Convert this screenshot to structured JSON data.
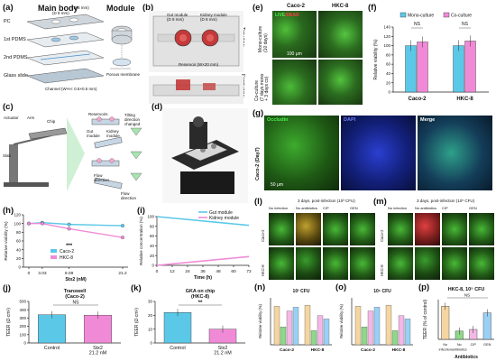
{
  "panel_labels": [
    "(a)",
    "(b)",
    "(c)",
    "(d)",
    "(e)",
    "(f)",
    "(g)",
    "(h)",
    "(i)",
    "(j)",
    "(k)",
    "(l)",
    "(m)",
    "(n)",
    "(o)",
    "(p)"
  ],
  "a": {
    "main_body": "Main body",
    "module": "Module",
    "layers": [
      "PC",
      "1st PDMS",
      "2nd PDMS",
      "Glass slide"
    ],
    "dims": [
      "(D 8 mm)",
      "(D 8 mm)"
    ],
    "channel": "Channel (W×H: 0.5×0.5 mm)",
    "porous": "Porous membrane"
  },
  "b": {
    "top_view": "Top view",
    "front_view": "Front view",
    "gut": "Gut module\n(D 8 mm)",
    "kidney": "Kidney module\n(D 8 mm)",
    "reservoir": "Reservoir (W×20 mm)"
  },
  "c": {
    "labels": [
      "Actuator",
      "Arm",
      "Chip",
      "Slab",
      "Reservoirs",
      "Tilting\ndirection\nchanged",
      "Gut\nmodule",
      "Kidney\nmodule",
      "Flow\ndirection",
      "Flow\ndirection"
    ]
  },
  "e": {
    "live_label": "LIVE",
    "dead_label": "/DEAD",
    "col1": "Caco-2",
    "col2": "HKC-8",
    "row1": "Mono-culture\n(10 days)",
    "row2": "Co-culture\n(7 days mono\n+ 3 days co)",
    "scale": "100 μm"
  },
  "f": {
    "title": "",
    "legend": [
      "Mono-culture",
      "Co-culture"
    ],
    "ylabel": "Relative viability (%)",
    "ns": [
      "NS",
      "NS"
    ],
    "categories": [
      "Caco-2",
      "HKC-8"
    ],
    "yticks": [
      "0",
      "20",
      "40",
      "60",
      "80",
      "100",
      "120",
      "140"
    ]
  },
  "g": {
    "row": "Caco-2 (Day7)",
    "tiles": [
      "Occludin",
      "DAPI",
      "Merge"
    ],
    "scale": "50 μm"
  },
  "h": {
    "ylabel": "Relative viability (%)",
    "xlabel": "Stx2 (nM)",
    "xticks": [
      "0",
      "3.03",
      "9.09",
      "21.2"
    ],
    "yticks": [
      "0",
      "20",
      "40",
      "60",
      "80",
      "100",
      "120"
    ],
    "legend": [
      "Caco-2",
      "HKC-8"
    ],
    "stars": "***"
  },
  "i": {
    "ylabel": "Relative concentration (%)",
    "xlabel": "Time (h)",
    "xticks": [
      "0",
      "12",
      "24",
      "36",
      "48",
      "60",
      "72"
    ],
    "yticks": [
      "0",
      "20",
      "40",
      "60",
      "80",
      "100"
    ],
    "legend": [
      "Gut module",
      "Kidney module"
    ]
  },
  "j": {
    "title": "Transwell\n(Caco-2)",
    "ylabel": "TEER (Ω·cm²)",
    "categories": [
      "Control",
      "Stx2\n21.2 nM"
    ],
    "ns": "NS",
    "yticks": [
      "0",
      "100",
      "200",
      "300",
      "400",
      "500"
    ]
  },
  "k": {
    "title": "GKA on chip\n(HKC-8)",
    "ylabel": "TEER (Ω·cm²)",
    "categories": [
      "Control",
      "Stx2\n21.2 nM"
    ],
    "stars": "**",
    "yticks": [
      "0",
      "10",
      "20",
      "30"
    ]
  },
  "l": {
    "header": "3 days, post-infection (10³ CFU)",
    "cols": [
      "No infection",
      "No antibiotics",
      "CIP",
      "GEN"
    ],
    "rows": [
      "Caco-2",
      "HKC-8"
    ]
  },
  "m": {
    "header": "3 days, post-infection (10⁵ CFU)",
    "cols": [
      "No infection",
      "No antibiotics",
      "CIP",
      "GEN"
    ],
    "rows": [
      "Caco-2",
      "HKC-8"
    ]
  },
  "n": {
    "title": "10³ CFU",
    "ylabel": "Relative viability (%)",
    "categories": [
      "Caco-2",
      "HKC-8"
    ]
  },
  "o": {
    "title": "10⁵ CFU",
    "ylabel": "Relative viability (%)",
    "categories": [
      "Caco-2",
      "HKC-8"
    ]
  },
  "p": {
    "title": "HKC-8, 10⁵ CFU",
    "ylabel": "TEER (% of control)",
    "xlabel": "Antibiotics",
    "categories": [
      "No\ninfection",
      "No\nantibiotics",
      "CIP",
      "GEN"
    ],
    "ns": "NS"
  },
  "colors": {
    "cyan": "#5bc8e8",
    "pink": "#f08ad6",
    "orange": "#f5d5a0",
    "green": "#8fd88a",
    "lightpink": "#f3b8e6",
    "blue": "#9ad0f5"
  },
  "chart_data": [
    {
      "type": "bar",
      "title": "",
      "ylabel": "Relative viability (%)",
      "categories": [
        "Caco-2",
        "HKC-8"
      ],
      "series": [
        {
          "name": "Mono-culture",
          "values": [
            100,
            100
          ]
        },
        {
          "name": "Co-culture",
          "values": [
            108,
            110
          ]
        }
      ],
      "ylim": [
        0,
        140
      ]
    },
    {
      "type": "line",
      "title": "",
      "xlabel": "Stx2 (nM)",
      "ylabel": "Relative viability (%)",
      "x": [
        0,
        3.03,
        9.09,
        21.2
      ],
      "series": [
        {
          "name": "Caco-2",
          "values": [
            100,
            102,
            98,
            95
          ]
        },
        {
          "name": "HKC-8",
          "values": [
            100,
            100,
            88,
            68
          ]
        }
      ],
      "ylim": [
        0,
        120
      ]
    },
    {
      "type": "line",
      "title": "",
      "xlabel": "Time (h)",
      "ylabel": "Relative concentration (%)",
      "x": [
        0,
        72
      ],
      "series": [
        {
          "name": "Gut module",
          "values": [
            100,
            82
          ]
        },
        {
          "name": "Kidney module",
          "values": [
            0,
            18
          ]
        }
      ],
      "ylim": [
        0,
        100
      ]
    },
    {
      "type": "bar",
      "title": "Transwell\n(Caco-2)",
      "ylabel": "TEER (Ω·cm²)",
      "categories": [
        "Control",
        "Stx2\n21.2 nM"
      ],
      "values": [
        340,
        335
      ],
      "ylim": [
        0,
        500
      ]
    },
    {
      "type": "bar",
      "title": "GKA on chip\n(HKC-8)",
      "ylabel": "TEER (Ω·cm²)",
      "categories": [
        "Control",
        "Stx2\n21.2 nM"
      ],
      "values": [
        22,
        10
      ],
      "ylim": [
        0,
        30
      ]
    },
    {
      "type": "bar",
      "title": "HKC-8, 10⁵ CFU",
      "xlabel": "Antibiotics",
      "ylabel": "TEER (% of control)",
      "categories": [
        "No\ninfection",
        "No\nantibiotics",
        "CIP",
        "GEN"
      ],
      "values": [
        100,
        25,
        30,
        80
      ],
      "ylim": [
        0,
        120
      ]
    }
  ]
}
